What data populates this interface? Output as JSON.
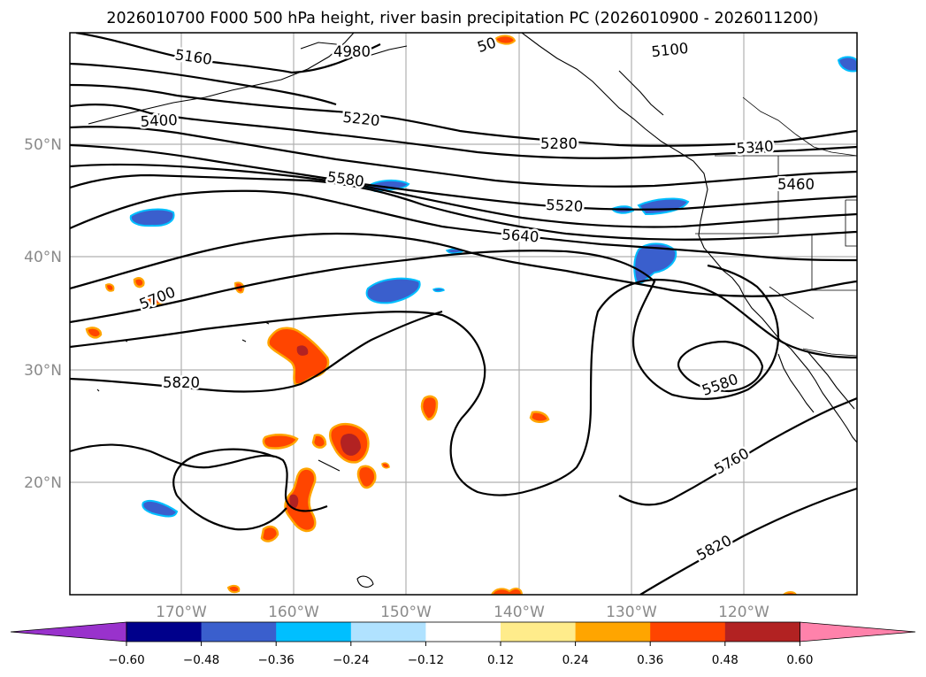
{
  "title": "2026010700 F000 500 hPa height, river basin precipitation PC (2026010900 - 2026011200)",
  "lat_labels": [
    "50°N",
    "40°N",
    "30°N",
    "20°N"
  ],
  "lon_labels": [
    "170°W",
    "160°W",
    "150°W",
    "140°W",
    "130°W",
    "120°W"
  ],
  "contour_labels": [
    "5160",
    "4980",
    "50",
    "5100",
    "5400",
    "5220",
    "5280",
    "5340",
    "5580",
    "5460",
    "5520",
    "5640",
    "5700",
    "5820",
    "5580",
    "5760",
    "5820"
  ],
  "colorbar": {
    "ticks": [
      "−0.60",
      "−0.48",
      "−0.36",
      "−0.24",
      "−0.12",
      "0.12",
      "0.24",
      "0.36",
      "0.48",
      "0.60"
    ],
    "colors": [
      "#9932cc",
      "#00008b",
      "#3a5fcd",
      "#00bfff",
      "#b0e2ff",
      "#ffffff",
      "#ffec8b",
      "#ffa500",
      "#ff4500",
      "#b22222",
      "#ff82ab"
    ]
  },
  "colors": {
    "grid": "#b0b0b0",
    "label_gray": "#8a8a8a",
    "contour": "#000000"
  }
}
